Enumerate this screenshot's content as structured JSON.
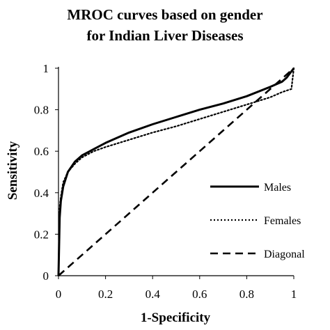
{
  "chart_data": {
    "type": "line",
    "title_lines": [
      "MROC  curves based on gender",
      "for Indian Liver Diseases"
    ],
    "xlabel": "1-Specificity",
    "ylabel": "Sensitivity",
    "xlim": [
      0,
      1
    ],
    "ylim": [
      0,
      1
    ],
    "x_ticks": [
      "0",
      "0.2",
      "0.4",
      "0.6",
      "0.8",
      "1"
    ],
    "y_ticks": [
      "0",
      "0.2",
      "0.4",
      "0.6",
      "0.8",
      "1"
    ],
    "grid": false,
    "legend_position": "right",
    "series": [
      {
        "name": "Males",
        "style": "solid",
        "color": "#000000",
        "x": [
          0,
          0.005,
          0.01,
          0.02,
          0.04,
          0.07,
          0.1,
          0.15,
          0.2,
          0.3,
          0.4,
          0.5,
          0.6,
          0.7,
          0.8,
          0.9,
          0.95,
          0.97,
          1.0
        ],
        "y": [
          0,
          0.28,
          0.36,
          0.43,
          0.5,
          0.55,
          0.58,
          0.61,
          0.64,
          0.69,
          0.73,
          0.765,
          0.8,
          0.83,
          0.865,
          0.91,
          0.935,
          0.955,
          1.0
        ]
      },
      {
        "name": "Females",
        "style": "dotted",
        "color": "#000000",
        "x": [
          0,
          0.005,
          0.01,
          0.02,
          0.04,
          0.07,
          0.1,
          0.15,
          0.2,
          0.3,
          0.4,
          0.5,
          0.6,
          0.7,
          0.8,
          0.9,
          0.95,
          0.99,
          1.0
        ],
        "y": [
          0,
          0.33,
          0.38,
          0.45,
          0.5,
          0.54,
          0.57,
          0.6,
          0.62,
          0.655,
          0.69,
          0.72,
          0.755,
          0.79,
          0.825,
          0.86,
          0.885,
          0.9,
          1.0
        ]
      },
      {
        "name": "Diagonal",
        "style": "dashed",
        "color": "#000000",
        "x": [
          0,
          1
        ],
        "y": [
          0,
          1
        ]
      }
    ]
  }
}
